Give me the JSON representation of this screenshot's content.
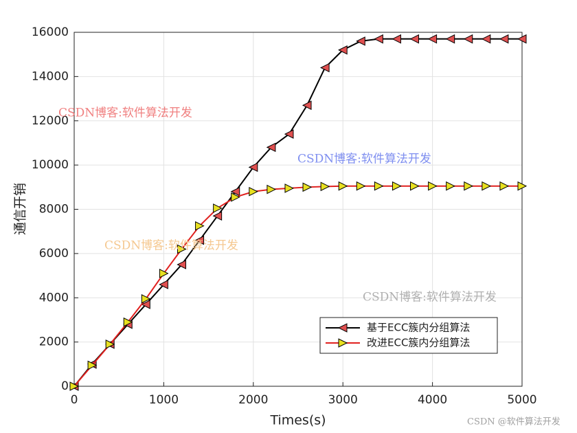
{
  "chart_data": {
    "type": "line",
    "xlabel": "Times(s)",
    "ylabel": "通信开销",
    "x": [
      0,
      200,
      400,
      600,
      800,
      1000,
      1200,
      1400,
      1600,
      1800,
      2000,
      2200,
      2400,
      2600,
      2800,
      3000,
      3200,
      3400,
      3600,
      3800,
      4000,
      4200,
      4400,
      4600,
      4800,
      5000
    ],
    "series": [
      {
        "name": "基于ECC簇内分组算法",
        "color": "#000000",
        "marker": "triangle-left",
        "marker_color": "#e05050",
        "values": [
          0,
          1000,
          1900,
          2800,
          3700,
          4600,
          5500,
          6600,
          7700,
          8800,
          9900,
          10800,
          11400,
          12700,
          14400,
          15200,
          15600,
          15700,
          15700,
          15700,
          15700,
          15700,
          15700,
          15700,
          15700,
          15700
        ]
      },
      {
        "name": "改进ECC簇内分组算法",
        "color": "#e0201e",
        "marker": "triangle-right",
        "marker_color": "#e8e020",
        "values": [
          0,
          950,
          1900,
          2900,
          3950,
          5100,
          6200,
          7250,
          8050,
          8550,
          8800,
          8900,
          8950,
          9000,
          9030,
          9050,
          9050,
          9050,
          9050,
          9050,
          9050,
          9050,
          9050,
          9050,
          9050,
          9050
        ]
      }
    ],
    "xlim": [
      0,
      5000
    ],
    "xticks": [
      0,
      1000,
      2000,
      3000,
      4000,
      5000
    ],
    "ylim": [
      0,
      16000
    ],
    "yticks": [
      0,
      2000,
      4000,
      6000,
      8000,
      10000,
      12000,
      14000,
      16000
    ],
    "grid": true,
    "legend": "lower-right",
    "annotations": [
      {
        "text": "CSDN博客:软件算法开发",
        "color": "#f08080"
      },
      {
        "text": "CSDN博客:软件算法开发",
        "color": "#7f8ff0"
      },
      {
        "text": "CSDN博客:软件算法开发",
        "color": "#f5c890"
      },
      {
        "text": "CSDN博客:软件算法开发",
        "color": "#b0b0b0"
      },
      {
        "text": "CSDN @软件算法开发",
        "color": "#a0a0a0"
      }
    ]
  }
}
